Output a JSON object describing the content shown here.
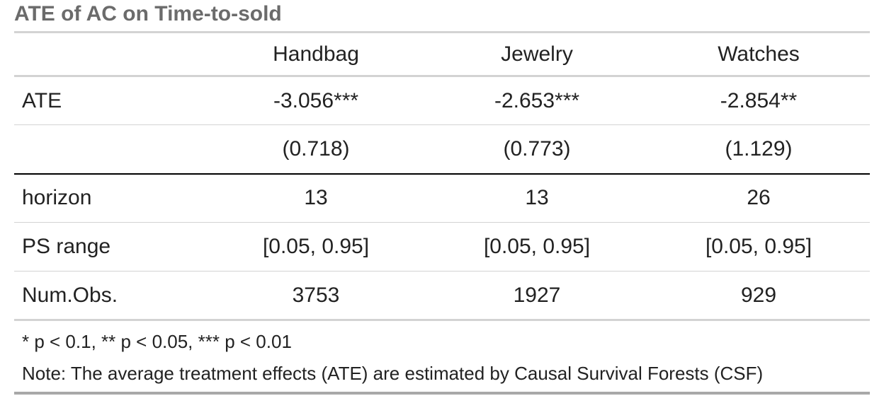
{
  "caption": "ATE of AC on Time-to-sold",
  "columns": [
    "",
    "Handbag",
    "Jewelry",
    "Watches"
  ],
  "rows": [
    {
      "label": "ATE",
      "values": [
        "-3.056***",
        "-2.653***",
        "-2.854**"
      ]
    },
    {
      "label": "",
      "values": [
        "(0.718)",
        "(0.773)",
        "(1.129)"
      ]
    },
    {
      "label": "horizon",
      "values": [
        "13",
        "13",
        "26"
      ]
    },
    {
      "label": "PS range",
      "values": [
        "[0.05, 0.95]",
        "[0.05, 0.95]",
        "[0.05, 0.95]"
      ]
    },
    {
      "label": "Num.Obs.",
      "values": [
        "3753",
        "1927",
        "929"
      ]
    }
  ],
  "footnotes": [
    "* p < 0.1, ** p < 0.05, *** p < 0.01",
    "Note: The average treatment effects (ATE) are estimated by Causal Survival Forests (CSF)"
  ]
}
